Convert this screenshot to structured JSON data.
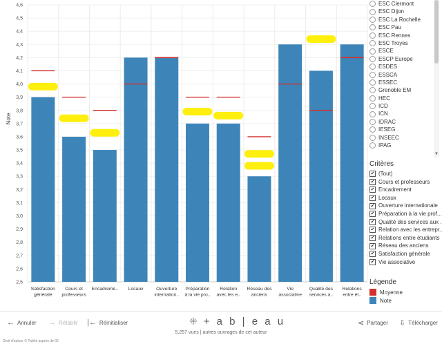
{
  "chart_data": {
    "type": "bar",
    "ylabel": "Note",
    "xlabel": "",
    "ylim": [
      2.5,
      4.6
    ],
    "yticks": [
      "4,6",
      "4,5",
      "4,4",
      "4,3",
      "4,2",
      "4,1",
      "4,0",
      "3,9",
      "3,8",
      "3,7",
      "3,6",
      "3,5",
      "3,4",
      "3,3",
      "3,2",
      "3,1",
      "3,0",
      "2,9",
      "2,8",
      "2,7",
      "2,6",
      "2,5"
    ],
    "categories": [
      [
        "Satisfaction",
        "générale"
      ],
      [
        "Cours et",
        "professeurs"
      ],
      [
        "Encadreme..",
        ""
      ],
      [
        "Locaux",
        ""
      ],
      [
        "Ouverture",
        "internation.."
      ],
      [
        "Préparation",
        "à la vie pro.."
      ],
      [
        "Relation",
        "avec les e.."
      ],
      [
        "Réseau des",
        "anciens"
      ],
      [
        "Vie",
        "associative"
      ],
      [
        "Qualité des",
        "services a.."
      ],
      [
        "Relations",
        "entre ét.."
      ]
    ],
    "series": [
      {
        "name": "Note",
        "values": [
          3.9,
          3.6,
          3.5,
          4.2,
          4.2,
          3.7,
          3.7,
          3.3,
          4.3,
          4.1,
          4.3
        ]
      },
      {
        "name": "Moyenne",
        "values": [
          4.1,
          3.9,
          3.8,
          4.0,
          4.2,
          3.9,
          3.9,
          3.6,
          4.0,
          3.8,
          4.2
        ]
      }
    ],
    "colors": {
      "Note": "#3d85b9",
      "Moyenne": "#d0312d",
      "highlight": "#ffee00"
    },
    "highlights": [
      {
        "category": 0,
        "y": 3.98
      },
      {
        "category": 1,
        "y": 3.74
      },
      {
        "category": 2,
        "y": 3.63
      },
      {
        "category": 5,
        "y": 3.79
      },
      {
        "category": 6,
        "y": 3.76
      },
      {
        "category": 7,
        "y": 3.47
      },
      {
        "category": 7,
        "y": 3.38
      },
      {
        "category": 9,
        "y": 4.34
      }
    ]
  },
  "schools": [
    "ESC Clermont",
    "ESC Dijon",
    "ESC La Rochelle",
    "ESC Pau",
    "ESC Rennes",
    "ESC Troyes",
    "ESCE",
    "ESCP Europe",
    "ESDES",
    "ESSCA",
    "ESSEC",
    "Grenoble EM",
    "HEC",
    "ICD",
    "ICN",
    "IDRAC",
    "IESEG",
    "INSEEC",
    "IPAG"
  ],
  "criteria": {
    "title": "Critères",
    "items": [
      "(Tout)",
      "Cours et professeurs",
      "Encadrement",
      "Locaux",
      "Ouverture internationale",
      "Préparation à la vie prof...",
      "Qualité des services aux ...",
      "Relation avec les entrepr...",
      "Relations entre étudiants",
      "Réseau des anciens",
      "Satisfaction générale",
      "Vie associative"
    ]
  },
  "legend": {
    "title": "Légende",
    "items": [
      {
        "label": "Moyenne",
        "color": "#d0312d"
      },
      {
        "label": "Note",
        "color": "#3d85b9"
      }
    ]
  },
  "toolbar": {
    "undo": "Annuler",
    "redo": "Rétablir",
    "reset": "Réinitialiser",
    "logo": "+ a b | e a u",
    "share": "Partager",
    "download": "Télécharger",
    "views": "5,257 vues | autres ouvrages de cet auteur"
  },
  "footer": "Droit d'auteur © Publié auprès de 02"
}
